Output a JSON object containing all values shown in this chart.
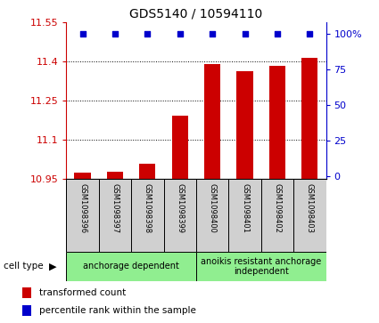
{
  "title": "GDS5140 / 10594110",
  "samples": [
    "GSM1098396",
    "GSM1098397",
    "GSM1098398",
    "GSM1098399",
    "GSM1098400",
    "GSM1098401",
    "GSM1098402",
    "GSM1098403"
  ],
  "bar_values": [
    10.975,
    10.98,
    11.01,
    11.195,
    11.39,
    11.365,
    11.385,
    11.415
  ],
  "percentile_values": [
    100,
    100,
    100,
    100,
    100,
    100,
    100,
    100
  ],
  "ymin": 10.95,
  "ymax": 11.55,
  "yticks": [
    10.95,
    11.1,
    11.25,
    11.4,
    11.55
  ],
  "ytick_labels": [
    "10.95",
    "11.1",
    "11.25",
    "11.4",
    "11.55"
  ],
  "right_yticks": [
    0,
    25,
    50,
    75,
    100
  ],
  "right_ytick_labels": [
    "0",
    "25",
    "50",
    "75",
    "100%"
  ],
  "bar_color": "#CC0000",
  "dot_color": "#0000CC",
  "bar_width": 0.5,
  "group1_label": "anchorage dependent",
  "group2_label": "anoikis resistant anchorage\nindependent",
  "group1_indices": [
    0,
    1,
    2,
    3
  ],
  "group2_indices": [
    4,
    5,
    6,
    7
  ],
  "cell_type_label": "cell type",
  "legend_bar_label": "transformed count",
  "legend_dot_label": "percentile rank within the sample",
  "axis_color_left": "#CC0000",
  "axis_color_right": "#0000CC",
  "bg_color": "#D0D0D0",
  "group1_color": "#90EE90",
  "group2_color": "#90EE90",
  "tick_label_fontsize": 8,
  "title_fontsize": 10
}
